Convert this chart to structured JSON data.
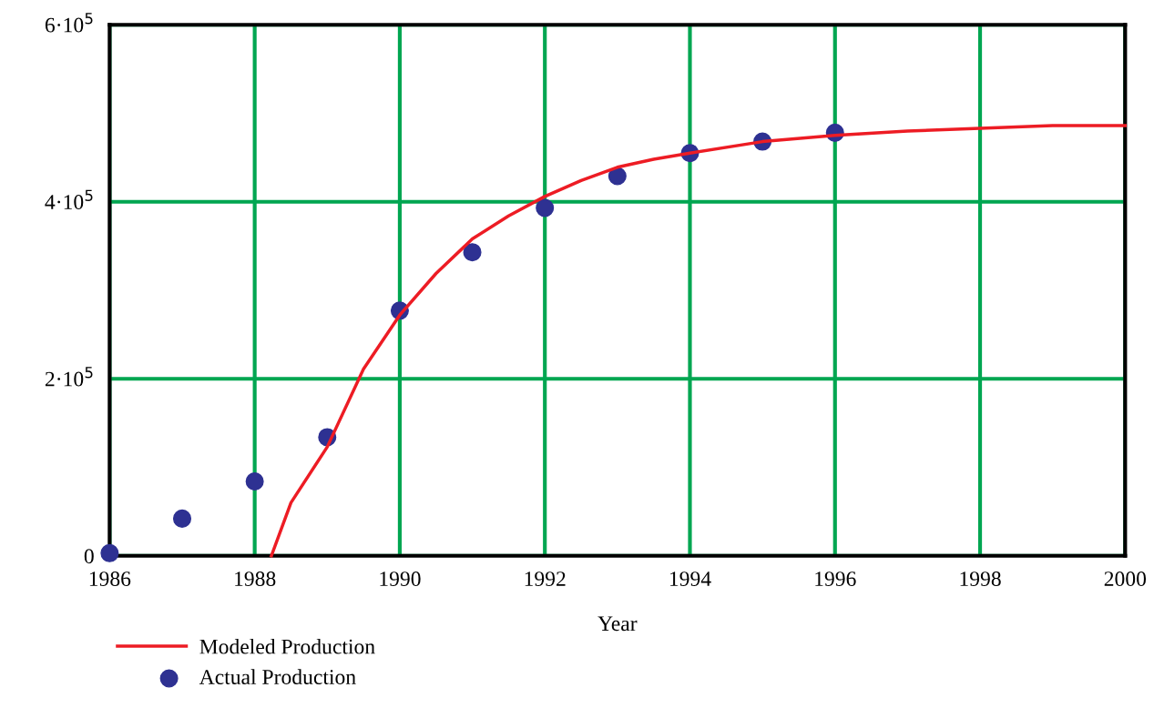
{
  "chart_data": {
    "type": "line",
    "xlabel": "Year",
    "xlim": [
      1986,
      2000
    ],
    "xticks": [
      1986,
      1988,
      1990,
      1992,
      1994,
      1996,
      1998,
      2000
    ],
    "ylim": [
      0,
      600000
    ],
    "yticks": [
      {
        "value": 0,
        "label": "0"
      },
      {
        "value": 200000,
        "label": "2·10$^{5}$"
      },
      {
        "value": 400000,
        "label": "4·10$^{5}$"
      },
      {
        "value": 600000,
        "label": "6·10$^{5}$"
      }
    ],
    "grid": true,
    "legend": "bottom left",
    "series": [
      {
        "name": "Modeled Production",
        "color": "#ed1c24",
        "line_style": "solid",
        "marker": "none",
        "x": [
          1988.23,
          1988.5,
          1989,
          1989.5,
          1990,
          1990.5,
          1991,
          1991.5,
          1992,
          1992.5,
          1993,
          1993.5,
          1994,
          1995,
          1996,
          1997,
          1998,
          1999,
          2000
        ],
        "values": [
          0,
          60000,
          123000,
          211000,
          272000,
          319000,
          358000,
          384000,
          406000,
          424000,
          439000,
          448000,
          455000,
          468000,
          475000,
          480000,
          483000,
          486000,
          486000
        ]
      },
      {
        "name": "Actual Production",
        "type": "scatter",
        "color": "#2e3192",
        "marker": "circle",
        "x": [
          1986,
          1987,
          1988,
          1989,
          1990,
          1991,
          1992,
          1993,
          1994,
          1995,
          1996
        ],
        "values": [
          3000,
          42000,
          84000,
          134000,
          277000,
          343000,
          393000,
          429000,
          455000,
          468000,
          478000
        ]
      }
    ]
  }
}
